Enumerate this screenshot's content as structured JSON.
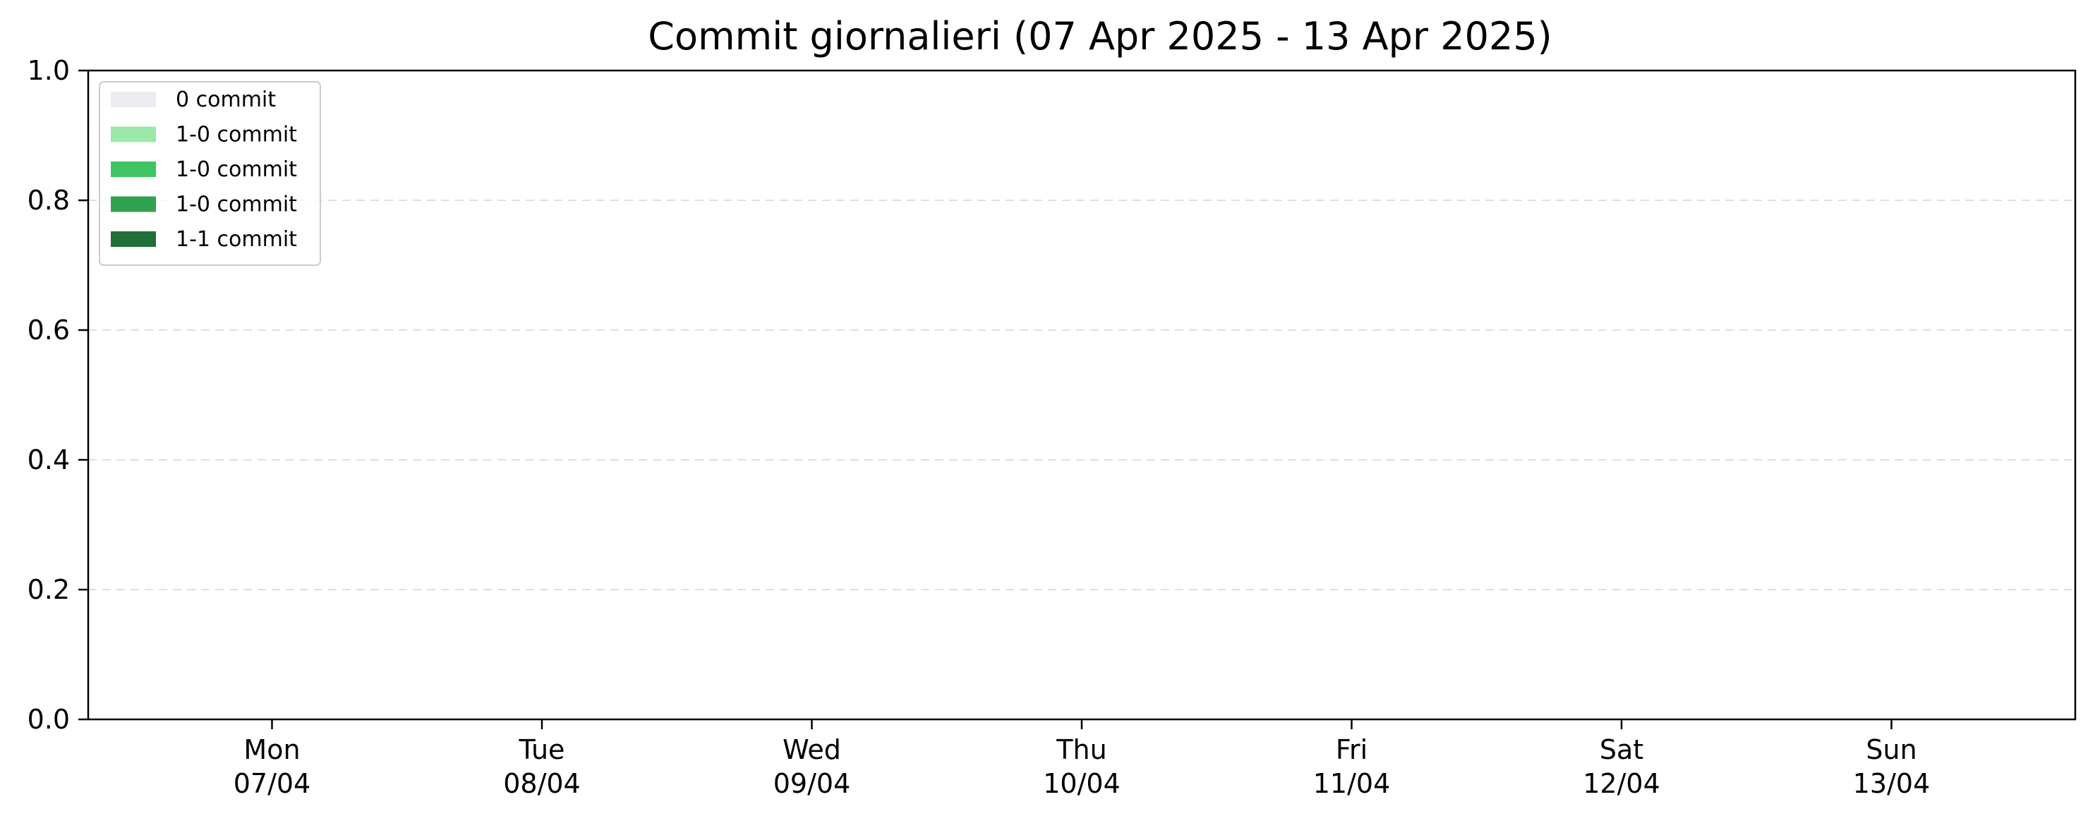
{
  "chart_data": {
    "type": "bar",
    "title": "Commit giornalieri (07 Apr 2025 - 13 Apr 2025)",
    "xlabel": "",
    "ylabel": "",
    "ylim": [
      0,
      1.0
    ],
    "yticks": [
      "0.0",
      "0.2",
      "0.4",
      "0.6",
      "0.8",
      "1.0"
    ],
    "grid": "y-dashed",
    "categories": [
      {
        "day": "Mon",
        "date": "07/04"
      },
      {
        "day": "Tue",
        "date": "08/04"
      },
      {
        "day": "Wed",
        "date": "09/04"
      },
      {
        "day": "Thu",
        "date": "10/04"
      },
      {
        "day": "Fri",
        "date": "11/04"
      },
      {
        "day": "Sat",
        "date": "12/04"
      },
      {
        "day": "Sun",
        "date": "13/04"
      }
    ],
    "values": [
      0,
      0,
      0,
      0,
      0,
      0,
      0
    ],
    "legend_position": "top-left",
    "legend": [
      {
        "label": "0 commit",
        "color": "#ebedf0"
      },
      {
        "label": "1-0 commit",
        "color": "#9be9a8"
      },
      {
        "label": "1-0 commit",
        "color": "#40c463"
      },
      {
        "label": "1-0 commit",
        "color": "#30a14e"
      },
      {
        "label": "1-1 commit",
        "color": "#216e39"
      }
    ]
  }
}
